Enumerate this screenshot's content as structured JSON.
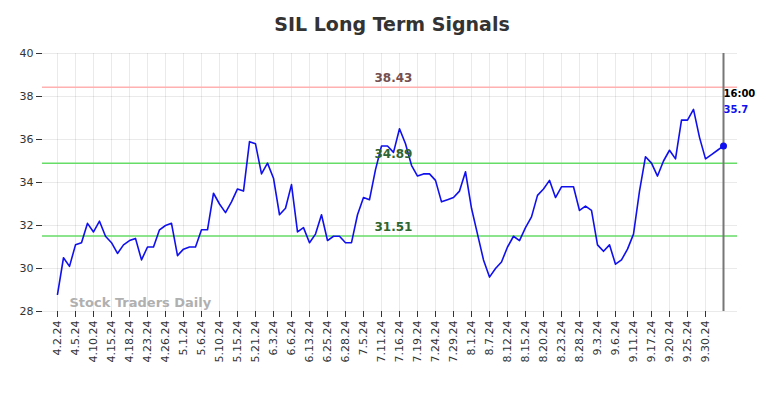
{
  "chart_data": {
    "type": "line",
    "title": "SIL Long Term Signals",
    "categories": [
      "4.2.24",
      null,
      null,
      "4.5.24",
      null,
      null,
      "4.10.24",
      null,
      null,
      "4.15.24",
      null,
      null,
      "4.18.24",
      null,
      null,
      "4.23.24",
      null,
      null,
      "4.26.24",
      null,
      null,
      "5.1.24",
      null,
      null,
      "5.6.24",
      null,
      null,
      "5.10.24",
      null,
      null,
      "5.15.24",
      null,
      null,
      "5.21.24",
      null,
      null,
      "6.3.24",
      null,
      null,
      "6.6.24",
      null,
      null,
      "6.13.24",
      null,
      null,
      "6.25.24",
      null,
      null,
      "6.28.24",
      null,
      null,
      "7.5.24",
      null,
      null,
      "7.11.24",
      null,
      null,
      "7.16.24",
      null,
      null,
      "7.19.24",
      null,
      null,
      "7.24.24",
      null,
      null,
      "7.29.24",
      null,
      null,
      "8.1.24",
      null,
      null,
      "8.7.24",
      null,
      null,
      "8.12.24",
      null,
      null,
      "8.15.24",
      null,
      null,
      "8.20.24",
      null,
      null,
      "8.23.24",
      null,
      null,
      "8.28.24",
      null,
      null,
      "9.3.24",
      null,
      null,
      "9.6.24",
      null,
      null,
      "9.11.24",
      null,
      null,
      "9.17.24",
      null,
      null,
      "9.20.24",
      null,
      null,
      "9.25.24",
      null,
      null,
      "9.30.24",
      null,
      null,
      null
    ],
    "values": [
      28.8,
      30.5,
      30.1,
      31.1,
      31.2,
      32.1,
      31.7,
      32.2,
      31.5,
      31.2,
      30.7,
      31.1,
      31.3,
      31.4,
      30.4,
      31.0,
      31.0,
      31.8,
      32.0,
      32.1,
      30.6,
      30.9,
      31.0,
      31.0,
      31.8,
      31.8,
      33.5,
      33.0,
      32.6,
      33.1,
      33.7,
      33.6,
      35.9,
      35.8,
      34.4,
      34.9,
      34.2,
      32.5,
      32.8,
      33.9,
      31.7,
      31.9,
      31.2,
      31.6,
      32.5,
      31.3,
      31.5,
      31.5,
      31.2,
      31.2,
      32.5,
      33.3,
      33.2,
      34.6,
      35.7,
      35.7,
      35.4,
      36.5,
      35.8,
      34.8,
      34.3,
      34.4,
      34.4,
      34.1,
      33.1,
      33.2,
      33.3,
      33.6,
      34.5,
      32.8,
      31.6,
      30.4,
      29.6,
      30.0,
      30.3,
      31.0,
      31.5,
      31.3,
      31.9,
      32.4,
      33.4,
      33.7,
      34.1,
      33.3,
      33.8,
      33.8,
      33.8,
      32.7,
      32.9,
      32.7,
      31.1,
      30.8,
      31.1,
      30.2,
      30.4,
      30.9,
      31.6,
      33.6,
      35.2,
      34.9,
      34.3,
      35.0,
      35.5,
      35.1,
      36.9,
      36.9,
      37.4,
      36.1,
      35.1,
      35.3,
      35.5,
      35.7
    ],
    "color": "#1010ee",
    "ylim": [
      28,
      40
    ],
    "yticks": [
      28,
      30,
      32,
      34,
      36,
      38,
      40
    ],
    "grid": true,
    "reference_lines": [
      {
        "value": 38.43,
        "color": "#ffb0b0"
      },
      {
        "value": 34.89,
        "color": "#66dd66"
      },
      {
        "value": 31.51,
        "color": "#66dd66"
      }
    ],
    "last_label": "16:00",
    "watermark": "Stock Traders Daily"
  }
}
